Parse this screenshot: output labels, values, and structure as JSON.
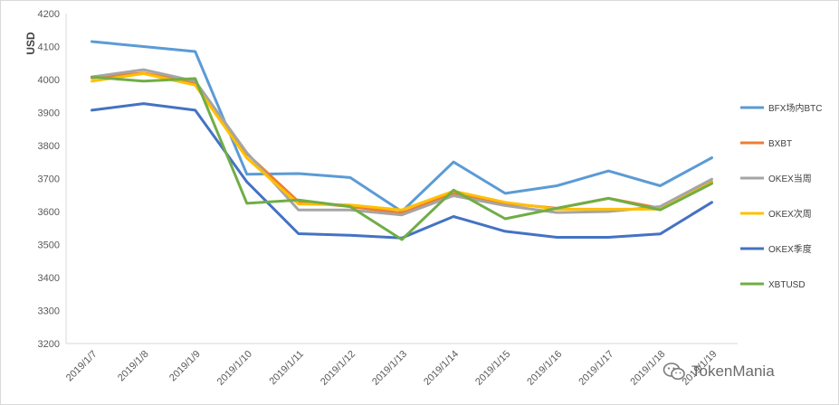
{
  "chart_data": {
    "type": "line",
    "title": "",
    "xlabel": "",
    "ylabel": "USD",
    "ylim": [
      3200,
      4200
    ],
    "yticks": [
      3200,
      3300,
      3400,
      3500,
      3600,
      3700,
      3800,
      3900,
      4000,
      4100,
      4200
    ],
    "grid": false,
    "legend_position": "right",
    "categories": [
      "2019/1/7",
      "2019/1/8",
      "2019/1/9",
      "2019/1/10",
      "2019/1/11",
      "2019/1/12",
      "2019/1/13",
      "2019/1/14",
      "2019/1/15",
      "2019/1/16",
      "2019/1/17",
      "2019/1/18",
      "2019/1/19"
    ],
    "series": [
      {
        "name": "BFX场内BTC",
        "color": "#5b9bd5",
        "values": [
          4115,
          4100,
          4085,
          3713,
          3715,
          3703,
          3600,
          3750,
          3655,
          3678,
          3723,
          3678,
          3763
        ]
      },
      {
        "name": "BXBT",
        "color": "#ed7d31",
        "values": [
          4005,
          4020,
          3990,
          3775,
          3630,
          3615,
          3595,
          3655,
          3625,
          3610,
          3640,
          3610,
          3690
        ]
      },
      {
        "name": "OKEX当周",
        "color": "#a5a5a5",
        "values": [
          4008,
          4030,
          3995,
          3778,
          3605,
          3605,
          3590,
          3648,
          3618,
          3597,
          3600,
          3615,
          3698
        ]
      },
      {
        "name": "OKEX次周",
        "color": "#ffc000",
        "values": [
          3995,
          4018,
          3983,
          3762,
          3623,
          3620,
          3605,
          3662,
          3628,
          3607,
          3607,
          3607,
          3688
        ]
      },
      {
        "name": "OKEX季度",
        "color": "#4472c4",
        "values": [
          3907,
          3927,
          3907,
          3690,
          3533,
          3528,
          3520,
          3585,
          3540,
          3522,
          3522,
          3532,
          3628
        ]
      },
      {
        "name": "XBTUSD",
        "color": "#70ad47",
        "values": [
          4008,
          3995,
          4003,
          3625,
          3635,
          3615,
          3515,
          3665,
          3578,
          3610,
          3640,
          3605,
          3685
        ]
      }
    ]
  },
  "watermark": {
    "icon": "wechat-icon",
    "text": "TokenMania"
  }
}
